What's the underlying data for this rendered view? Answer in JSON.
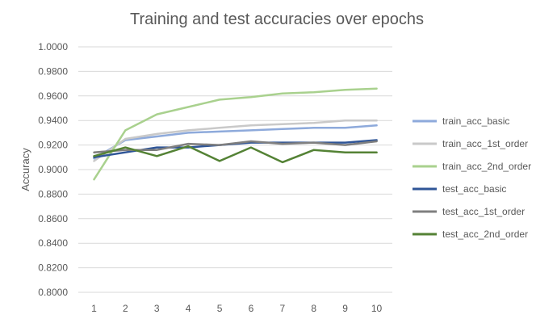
{
  "chart_data": {
    "type": "line",
    "title": "Training and test accuracies over epochs",
    "xlabel": "",
    "ylabel": "Accuracy",
    "x": [
      1,
      2,
      3,
      4,
      5,
      6,
      7,
      8,
      9,
      10
    ],
    "xtick_labels": [
      "1",
      "2",
      "3",
      "4",
      "5",
      "6",
      "7",
      "8",
      "9",
      "10"
    ],
    "ylim": [
      0.8,
      1.0
    ],
    "ytick_values": [
      0.8,
      0.82,
      0.84,
      0.86,
      0.88,
      0.9,
      0.92,
      0.94,
      0.96,
      0.98,
      1.0
    ],
    "ytick_labels": [
      "0.8000",
      "0.8200",
      "0.8400",
      "0.8600",
      "0.8800",
      "0.9000",
      "0.9200",
      "0.9400",
      "0.9600",
      "0.9800",
      "1.0000"
    ],
    "grid": "horizontal",
    "legend_position": "right",
    "series": [
      {
        "name": "train_acc_basic",
        "color": "#8eaadb",
        "values": [
          0.909,
          0.924,
          0.927,
          0.93,
          0.931,
          0.932,
          0.933,
          0.934,
          0.934,
          0.936
        ]
      },
      {
        "name": "train_acc_1st_order",
        "color": "#c9c9c9",
        "values": [
          0.907,
          0.925,
          0.929,
          0.932,
          0.934,
          0.936,
          0.937,
          0.938,
          0.94,
          0.94
        ]
      },
      {
        "name": "train_acc_2nd_order",
        "color": "#a9d18e",
        "values": [
          0.892,
          0.932,
          0.945,
          0.951,
          0.957,
          0.959,
          0.962,
          0.963,
          0.965,
          0.966
        ]
      },
      {
        "name": "test_acc_basic",
        "color": "#2f5597",
        "values": [
          0.91,
          0.914,
          0.918,
          0.918,
          0.92,
          0.922,
          0.922,
          0.922,
          0.922,
          0.924
        ]
      },
      {
        "name": "test_acc_1st_order",
        "color": "#7f7f7f",
        "values": [
          0.914,
          0.916,
          0.916,
          0.921,
          0.92,
          0.923,
          0.921,
          0.922,
          0.92,
          0.923
        ]
      },
      {
        "name": "test_acc_2nd_order",
        "color": "#548235",
        "values": [
          0.911,
          0.918,
          0.911,
          0.919,
          0.907,
          0.918,
          0.906,
          0.916,
          0.914,
          0.914
        ]
      }
    ]
  }
}
